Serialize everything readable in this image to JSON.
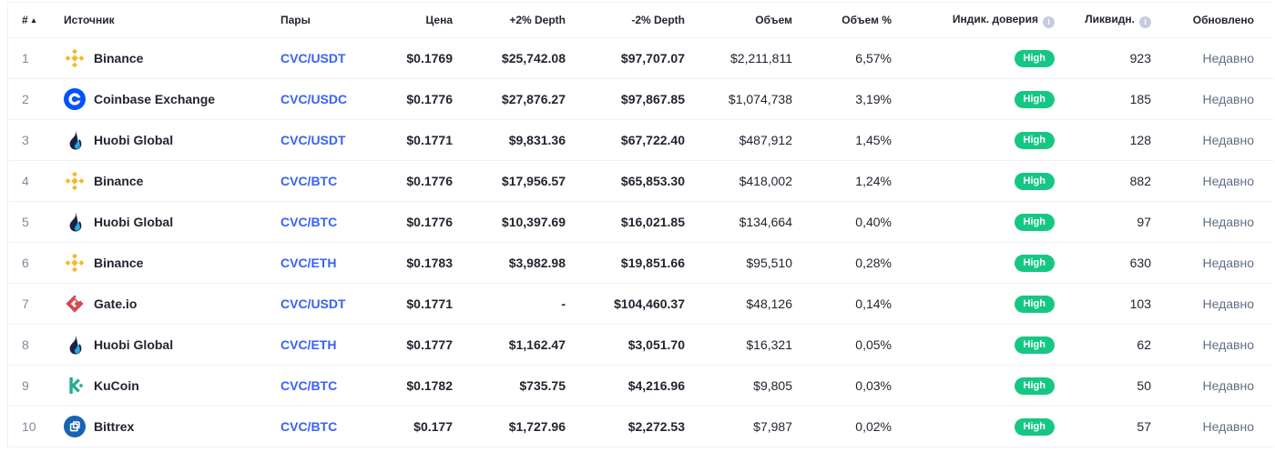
{
  "table": {
    "columns": [
      {
        "key": "rank",
        "label": "#",
        "sorted": "asc"
      },
      {
        "key": "source",
        "label": "Источник"
      },
      {
        "key": "pair",
        "label": "Пары"
      },
      {
        "key": "price",
        "label": "Цена"
      },
      {
        "key": "depth_plus",
        "label": "+2% Depth"
      },
      {
        "key": "depth_minus",
        "label": "-2% Depth"
      },
      {
        "key": "volume",
        "label": "Объем"
      },
      {
        "key": "volume_pct",
        "label": "Объем %"
      },
      {
        "key": "confidence",
        "label": "Индик. доверия",
        "info": true
      },
      {
        "key": "liquidity",
        "label": "Ликвидн.",
        "info": true
      },
      {
        "key": "updated",
        "label": "Обновлено"
      }
    ],
    "rows": [
      {
        "rank": "1",
        "exchange": "Binance",
        "icon": "binance-logo",
        "pair": "CVC/USDT",
        "price": "$0.1769",
        "depth_plus": "$25,742.08",
        "depth_minus": "$97,707.07",
        "volume": "$2,211,811",
        "volume_pct": "6,57%",
        "confidence": "High",
        "liquidity": "923",
        "updated": "Недавно"
      },
      {
        "rank": "2",
        "exchange": "Coinbase Exchange",
        "icon": "coinbase-logo",
        "pair": "CVC/USDC",
        "price": "$0.1776",
        "depth_plus": "$27,876.27",
        "depth_minus": "$97,867.85",
        "volume": "$1,074,738",
        "volume_pct": "3,19%",
        "confidence": "High",
        "liquidity": "185",
        "updated": "Недавно"
      },
      {
        "rank": "3",
        "exchange": "Huobi Global",
        "icon": "huobi-logo",
        "pair": "CVC/USDT",
        "price": "$0.1771",
        "depth_plus": "$9,831.36",
        "depth_minus": "$67,722.40",
        "volume": "$487,912",
        "volume_pct": "1,45%",
        "confidence": "High",
        "liquidity": "128",
        "updated": "Недавно"
      },
      {
        "rank": "4",
        "exchange": "Binance",
        "icon": "binance-logo",
        "pair": "CVC/BTC",
        "price": "$0.1776",
        "depth_plus": "$17,956.57",
        "depth_minus": "$65,853.30",
        "volume": "$418,002",
        "volume_pct": "1,24%",
        "confidence": "High",
        "liquidity": "882",
        "updated": "Недавно"
      },
      {
        "rank": "5",
        "exchange": "Huobi Global",
        "icon": "huobi-logo",
        "pair": "CVC/BTC",
        "price": "$0.1776",
        "depth_plus": "$10,397.69",
        "depth_minus": "$16,021.85",
        "volume": "$134,664",
        "volume_pct": "0,40%",
        "confidence": "High",
        "liquidity": "97",
        "updated": "Недавно"
      },
      {
        "rank": "6",
        "exchange": "Binance",
        "icon": "binance-logo",
        "pair": "CVC/ETH",
        "price": "$0.1783",
        "depth_plus": "$3,982.98",
        "depth_minus": "$19,851.66",
        "volume": "$95,510",
        "volume_pct": "0,28%",
        "confidence": "High",
        "liquidity": "630",
        "updated": "Недавно"
      },
      {
        "rank": "7",
        "exchange": "Gate.io",
        "icon": "gate-logo",
        "pair": "CVC/USDT",
        "price": "$0.1771",
        "depth_plus": "-",
        "depth_minus": "$104,460.37",
        "volume": "$48,126",
        "volume_pct": "0,14%",
        "confidence": "High",
        "liquidity": "103",
        "updated": "Недавно"
      },
      {
        "rank": "8",
        "exchange": "Huobi Global",
        "icon": "huobi-logo",
        "pair": "CVC/ETH",
        "price": "$0.1777",
        "depth_plus": "$1,162.47",
        "depth_minus": "$3,051.70",
        "volume": "$16,321",
        "volume_pct": "0,05%",
        "confidence": "High",
        "liquidity": "62",
        "updated": "Недавно"
      },
      {
        "rank": "9",
        "exchange": "KuCoin",
        "icon": "kucoin-logo",
        "pair": "CVC/BTC",
        "price": "$0.1782",
        "depth_plus": "$735.75",
        "depth_minus": "$4,216.96",
        "volume": "$9,805",
        "volume_pct": "0,03%",
        "confidence": "High",
        "liquidity": "50",
        "updated": "Недавно"
      },
      {
        "rank": "10",
        "exchange": "Bittrex",
        "icon": "bittrex-logo",
        "pair": "CVC/BTC",
        "price": "$0.177",
        "depth_plus": "$1,727.96",
        "depth_minus": "$2,272.53",
        "volume": "$7,987",
        "volume_pct": "0,02%",
        "confidence": "High",
        "liquidity": "57",
        "updated": "Недавно"
      }
    ]
  },
  "colors": {
    "text": "#222531",
    "rank_grey": "#808a9d",
    "updated_grey": "#616e85",
    "pair_link": "#3861fb",
    "confidence_high": "#16c784",
    "divider": "#eff2f5",
    "binance_gold": "#f3ba2f",
    "coinbase_blue": "#0052ff",
    "huobi_navy": "#1b2143",
    "huobi_cyan": "#2ca6e0",
    "gate_red": "#d8464e",
    "kucoin_green": "#23af91",
    "bittrex_blue": "#1763b6"
  }
}
